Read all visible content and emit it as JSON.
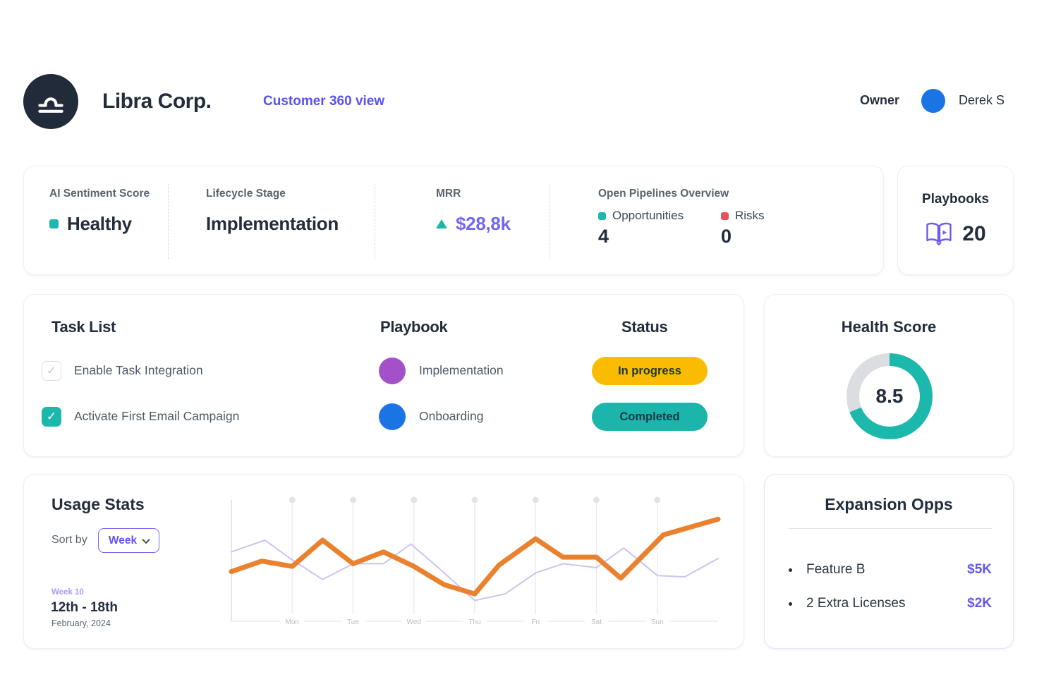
{
  "colors": {
    "teal": "#1CB8AC",
    "red": "#E8505B",
    "accent_purple": "#6356EE",
    "yellow": "#FBBB00",
    "orange": "#E9812F",
    "lavender_line": "#C9C5F2",
    "navy": "#232D3B",
    "blue": "#1B74E4",
    "donut_rest": "#DBDDE0"
  },
  "header": {
    "company_name": "Libra Corp.",
    "view_link": "Customer 360 view",
    "owner_label": "Owner",
    "owner_name": "Derek S"
  },
  "stats": {
    "sentiment": {
      "label": "AI Sentiment Score",
      "value": "Healthy",
      "dot_color": "#1CB8AC"
    },
    "lifecycle": {
      "label": "Lifecycle Stage",
      "value": "Implementation"
    },
    "mrr": {
      "label": "MRR",
      "value": "$28,8k"
    },
    "pipelines": {
      "label": "Open Pipelines Overview",
      "opportunities": {
        "label": "Opportunities",
        "value": "4",
        "dot_color": "#1CB8AC"
      },
      "risks": {
        "label": "Risks",
        "value": "0",
        "dot_color": "#E8505B"
      }
    },
    "playbooks": {
      "label": "Playbooks",
      "value": "20"
    }
  },
  "tasks": {
    "title": "Task List",
    "playbook_header": "Playbook",
    "status_header": "Status",
    "rows": [
      {
        "task": "Enable Task Integration",
        "checked": true,
        "check_mark": "✓",
        "playbook": "Implementation",
        "playbook_color": "#A351C9",
        "status": "In progress",
        "status_bg": "#FBBB00"
      },
      {
        "task": "Activate First Email Campaign",
        "checked": true,
        "check_mark": "✓",
        "playbook": "Onboarding",
        "playbook_color": "#1B74E4",
        "status": "Completed",
        "status_bg": "#1CB5AB"
      }
    ]
  },
  "health": {
    "title": "Health Score",
    "score": "8.5",
    "percent": 69
  },
  "usage": {
    "title": "Usage Stats",
    "sort_label": "Sort by",
    "sort_value": "Week",
    "week_tag": "Week 10",
    "week_range": "12th - 18th",
    "week_subtitle": "February, 2024"
  },
  "chart_data": {
    "type": "line",
    "title": "Usage Stats",
    "x_labels": [
      "Mon",
      "Tue",
      "Wed",
      "Thu",
      "Fri",
      "Sat",
      "Sun"
    ],
    "x_encoding": "week units: 0 = left axis, 1..7 = Mon..Sun gridlines, 8 = right edge",
    "ylabel": "relative usage (no axis labels shown)",
    "y_range": [
      0,
      100
    ],
    "grid": "vertical day lines with dot caps",
    "legend": "none",
    "series": [
      {
        "name": "primary",
        "color": "#E9812F",
        "width": 7,
        "points": [
          [
            0,
            40
          ],
          [
            0.5,
            48
          ],
          [
            1,
            44
          ],
          [
            1.5,
            64
          ],
          [
            2,
            46
          ],
          [
            2.5,
            55
          ],
          [
            3,
            44
          ],
          [
            3.5,
            30
          ],
          [
            4,
            23
          ],
          [
            4.4,
            45
          ],
          [
            5,
            65
          ],
          [
            5.45,
            51
          ],
          [
            6,
            51
          ],
          [
            6.4,
            35
          ],
          [
            7.1,
            68
          ],
          [
            8,
            80
          ]
        ]
      },
      {
        "name": "secondary",
        "color": "#C9C5F2",
        "width": 2,
        "points": [
          [
            0,
            55
          ],
          [
            0.55,
            64
          ],
          [
            1,
            49
          ],
          [
            1.5,
            34
          ],
          [
            2,
            46
          ],
          [
            2.5,
            46
          ],
          [
            2.95,
            61
          ],
          [
            3.5,
            39
          ],
          [
            4,
            18
          ],
          [
            4.5,
            23
          ],
          [
            5,
            39
          ],
          [
            5.45,
            46
          ],
          [
            6,
            43
          ],
          [
            6.45,
            58
          ],
          [
            7,
            37
          ],
          [
            7.45,
            36
          ],
          [
            8,
            50
          ]
        ]
      }
    ]
  },
  "expansion": {
    "title": "Expansion Opps",
    "items": [
      {
        "label": "Feature B",
        "value": "$5K"
      },
      {
        "label": "2 Extra Licenses",
        "value": "$2K"
      }
    ]
  }
}
